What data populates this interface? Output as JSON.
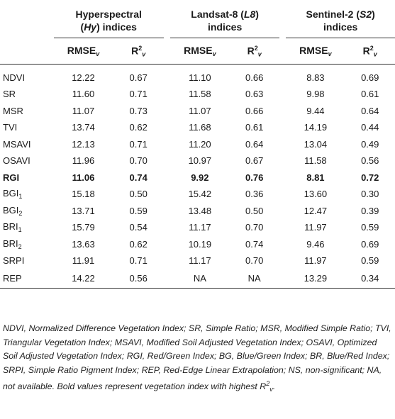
{
  "table": {
    "groups": [
      {
        "line1": "Hyperspectral",
        "line2_pre": "(",
        "line2_it": "Hy",
        "line2_post": ") indices"
      },
      {
        "line1_pre": "Landsat-8 (",
        "line1_it": "L8",
        "line1_post": ")",
        "line2": "indices"
      },
      {
        "line1_pre": "Sentinel-2 (",
        "line1_it": "S2",
        "line1_post": ")",
        "line2": "indices"
      }
    ],
    "col_rmse": "RMSE",
    "col_rmse_sub": "v",
    "col_r2": "R",
    "col_r2_sup": "2",
    "col_r2_sub": "v",
    "rows": [
      {
        "index": "NDVI",
        "sub": "",
        "bold": false,
        "v": [
          "12.22",
          "0.67",
          "11.10",
          "0.66",
          "8.83",
          "0.69"
        ]
      },
      {
        "index": "SR",
        "sub": "",
        "bold": false,
        "v": [
          "11.60",
          "0.71",
          "11.58",
          "0.63",
          "9.98",
          "0.61"
        ]
      },
      {
        "index": "MSR",
        "sub": "",
        "bold": false,
        "v": [
          "11.07",
          "0.73",
          "11.07",
          "0.66",
          "9.44",
          "0.64"
        ]
      },
      {
        "index": "TVI",
        "sub": "",
        "bold": false,
        "v": [
          "13.74",
          "0.62",
          "11.68",
          "0.61",
          "14.19",
          "0.44"
        ]
      },
      {
        "index": "MSAVI",
        "sub": "",
        "bold": false,
        "v": [
          "12.13",
          "0.71",
          "11.20",
          "0.64",
          "13.04",
          "0.49"
        ]
      },
      {
        "index": "OSAVI",
        "sub": "",
        "bold": false,
        "v": [
          "11.96",
          "0.70",
          "10.97",
          "0.67",
          "11.58",
          "0.56"
        ]
      },
      {
        "index": "RGI",
        "sub": "",
        "bold": true,
        "v": [
          "11.06",
          "0.74",
          "9.92",
          "0.76",
          "8.81",
          "0.72"
        ]
      },
      {
        "index": "BGI",
        "sub": "1",
        "bold": false,
        "v": [
          "15.18",
          "0.50",
          "15.42",
          "0.36",
          "13.60",
          "0.30"
        ]
      },
      {
        "index": "BGI",
        "sub": "2",
        "bold": false,
        "v": [
          "13.71",
          "0.59",
          "13.48",
          "0.50",
          "12.47",
          "0.39"
        ]
      },
      {
        "index": "BRI",
        "sub": "1",
        "bold": false,
        "v": [
          "15.79",
          "0.54",
          "11.17",
          "0.70",
          "11.97",
          "0.59"
        ]
      },
      {
        "index": "BRI",
        "sub": "2",
        "bold": false,
        "v": [
          "13.63",
          "0.62",
          "10.19",
          "0.74",
          "9.46",
          "0.69"
        ]
      },
      {
        "index": "SRPI",
        "sub": "",
        "bold": false,
        "v": [
          "11.91",
          "0.71",
          "11.17",
          "0.70",
          "11.97",
          "0.59"
        ]
      },
      {
        "index": "REP",
        "sub": "",
        "bold": false,
        "v": [
          "14.22",
          "0.56",
          "NA",
          "NA",
          "13.29",
          "0.34"
        ]
      }
    ]
  },
  "footnote": {
    "text": "NDVI, Normalized Difference Vegetation Index; SR, Simple Ratio; MSR, Modified Simple Ratio; TVI, Triangular Vegetation Index; MSAVI, Modified Soil Adjusted Vegetation Index; OSAVI, Optimized Soil Adjusted Vegetation Index; RGI, Red/Green Index; BG, Blue/Green Index; BR, Blue/Red Index; SRPI, Simple Ratio Pigment Index; REP, Red-Edge Linear Extrapolation; NS, non-significant; NA, not available. Bold values represent vegetation index with highest R",
    "sup": "2",
    "sub": "v",
    "end": "."
  }
}
